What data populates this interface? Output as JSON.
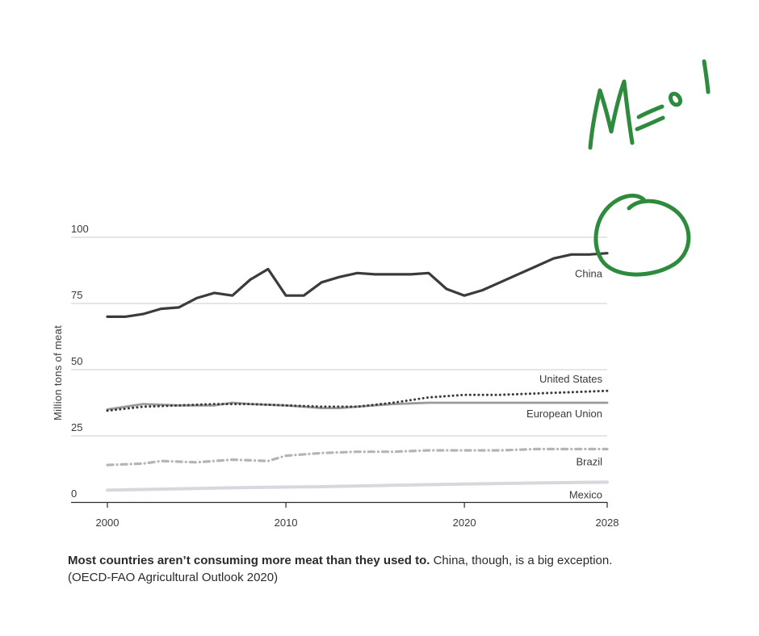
{
  "chart_data": {
    "type": "line",
    "ylabel": "Million tons of meat",
    "ylim": [
      0,
      100
    ],
    "yticks": [
      0,
      25,
      50,
      75,
      100
    ],
    "xlim": [
      2000,
      2028
    ],
    "xticks": [
      2000,
      2010,
      2020,
      2028
    ],
    "grid": true,
    "series": [
      {
        "name": "China",
        "color": "#3b3b3b",
        "style": "solid",
        "x": [
          2000,
          2001,
          2002,
          2003,
          2004,
          2005,
          2006,
          2007,
          2008,
          2009,
          2010,
          2011,
          2012,
          2013,
          2014,
          2015,
          2016,
          2017,
          2018,
          2019,
          2020,
          2021,
          2022,
          2023,
          2024,
          2025,
          2026,
          2027,
          2028
        ],
        "values": [
          70,
          70,
          71,
          73,
          73.5,
          77,
          79,
          78,
          84,
          88,
          78,
          78,
          83,
          85,
          86.5,
          86,
          86,
          86,
          86.5,
          80.5,
          78,
          80,
          83,
          86,
          89,
          92,
          93.5,
          93.5,
          94
        ]
      },
      {
        "name": "United States",
        "color": "#3b3b3b",
        "style": "dotted",
        "x": [
          2000,
          2002,
          2004,
          2006,
          2008,
          2010,
          2012,
          2014,
          2016,
          2018,
          2020,
          2022,
          2024,
          2026,
          2028
        ],
        "values": [
          34.5,
          36,
          36.5,
          37,
          37,
          36.5,
          36,
          36,
          37.5,
          39.5,
          40.5,
          40.5,
          41,
          41.5,
          42
        ]
      },
      {
        "name": "European Union",
        "color": "#9a9a9a",
        "style": "solid",
        "x": [
          2000,
          2002,
          2004,
          2006,
          2007,
          2008,
          2010,
          2012,
          2013,
          2014,
          2016,
          2018,
          2020,
          2022,
          2024,
          2026,
          2028
        ],
        "values": [
          35,
          37,
          36.5,
          36.5,
          37.5,
          37,
          36.5,
          35.5,
          35.5,
          36,
          37,
          37.5,
          37.5,
          37.5,
          37.5,
          37.5,
          37.5
        ]
      },
      {
        "name": "Brazil",
        "color": "#b5b5b5",
        "style": "dashdot",
        "x": [
          2000,
          2002,
          2003,
          2005,
          2007,
          2009,
          2010,
          2012,
          2014,
          2016,
          2018,
          2020,
          2022,
          2024,
          2026,
          2028
        ],
        "values": [
          14,
          14.5,
          15.5,
          15,
          16,
          15.5,
          17.5,
          18.5,
          19,
          19,
          19.5,
          19.5,
          19.5,
          20,
          20,
          20
        ]
      },
      {
        "name": "Mexico",
        "color": "#d7d7de",
        "style": "solid",
        "x": [
          2000,
          2004,
          2008,
          2012,
          2016,
          2020,
          2024,
          2028
        ],
        "values": [
          4.5,
          5,
          5.5,
          5.8,
          6.3,
          6.8,
          7.2,
          7.5
        ]
      }
    ]
  },
  "caption": {
    "bold": "Most countries aren’t consuming more meat than they used to.",
    "rest": " China, though, is a big exception. (OECD-FAO Agricultural Outlook 2020)"
  },
  "annotation": {
    "handwriting": "Meat",
    "color": "#2e8b3e"
  }
}
